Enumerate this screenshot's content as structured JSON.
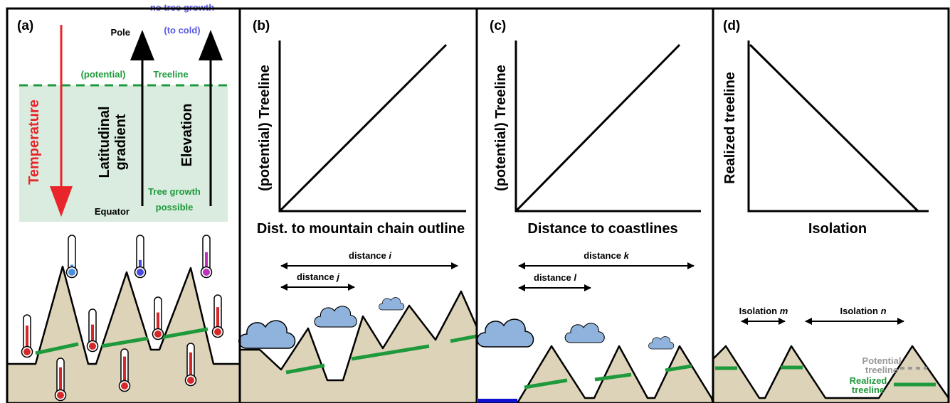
{
  "panel_a": {
    "label": "(a)",
    "pole": "Pole",
    "no_growth": [
      "no tree growth",
      "(to cold)"
    ],
    "potential": "(potential)",
    "treeline": "Treeline",
    "temperature": "Temperature",
    "latitudinal": [
      "Latitudinal",
      "gradient"
    ],
    "elevation": "Elevation",
    "growth": [
      "Tree growth",
      "possible"
    ],
    "equator": "Equator"
  },
  "panel_b": {
    "label": "(b)",
    "y_label": "(potential) Treeline",
    "x_label": "Dist. to mountain chain outline",
    "dist_long": {
      "text": "distance",
      "var": "i"
    },
    "dist_short": {
      "text": "distance",
      "var": "j"
    }
  },
  "panel_c": {
    "label": "(c)",
    "y_label": "(potential) Treeline",
    "x_label": "Distance to coastlines",
    "dist_long": {
      "text": "distance",
      "var": "k"
    },
    "dist_short": {
      "text": "distance",
      "var": "l"
    }
  },
  "panel_d": {
    "label": "(d)",
    "y_label": "Realized treeline",
    "x_label": "Isolation",
    "iso_short": {
      "text": "Isolation",
      "var": "m"
    },
    "iso_long": {
      "text": "Isolation",
      "var": "n"
    },
    "potential": [
      "Potential",
      "treeline"
    ],
    "realized": [
      "Realized",
      "treeline"
    ]
  }
}
